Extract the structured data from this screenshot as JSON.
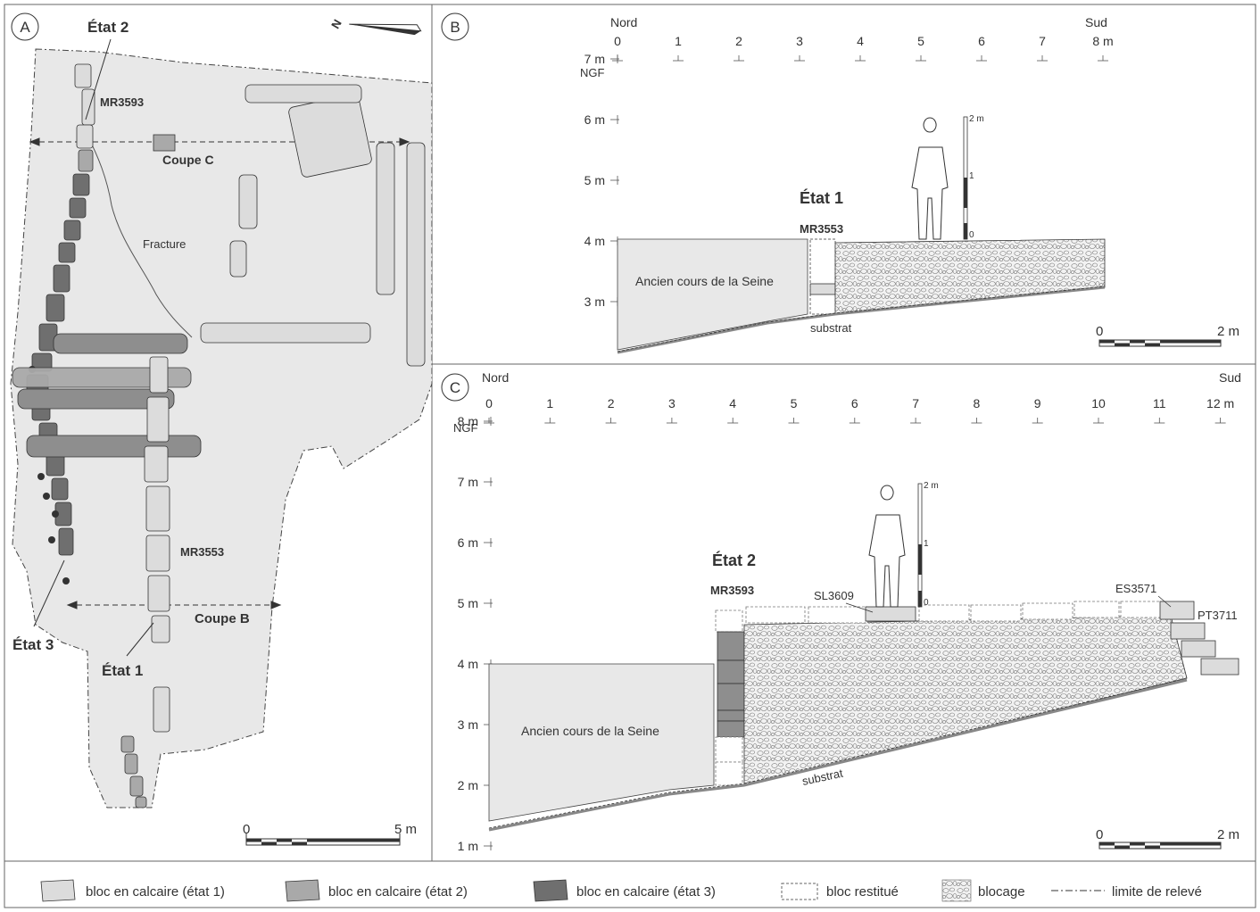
{
  "panelA": {
    "letter": "A",
    "etat2": "État 2",
    "etat3": "État 3",
    "etat1": "État 1",
    "mr3593": "MR3593",
    "mr3553": "MR3553",
    "coupeC": "Coupe C",
    "coupeB": "Coupe B",
    "fracture": "Fracture",
    "north": "N",
    "scale_zero": "0",
    "scale_end": "5 m"
  },
  "panelB": {
    "letter": "B",
    "nord": "Nord",
    "sud": "Sud",
    "top_ticks": [
      "0",
      "1",
      "2",
      "3",
      "4",
      "5",
      "6",
      "7",
      "8 m"
    ],
    "elev_labels": [
      "7 m",
      "6 m",
      "5 m",
      "4 m",
      "3 m"
    ],
    "ngf": "NGF",
    "etat": "État 1",
    "wall": "MR3553",
    "river": "Ancien cours de la Seine",
    "substrat": "substrat",
    "rod_top": "2 m",
    "rod_mid": "1",
    "rod_zero": "0",
    "scale_zero": "0",
    "scale_end": "2 m"
  },
  "panelC": {
    "letter": "C",
    "nord": "Nord",
    "sud": "Sud",
    "top_ticks": [
      "0",
      "1",
      "2",
      "3",
      "4",
      "5",
      "6",
      "7",
      "8",
      "9",
      "10",
      "11",
      "12 m"
    ],
    "elev_labels": [
      "8 m",
      "7 m",
      "6 m",
      "5 m",
      "4 m",
      "3 m",
      "2 m",
      "1 m"
    ],
    "ngf": "NGF",
    "etat": "État 2",
    "wall": "MR3593",
    "sl": "SL3609",
    "es": "ES3571",
    "pt": "PT3711",
    "river": "Ancien cours de la Seine",
    "substrat": "substrat",
    "rod_top": "2 m",
    "rod_mid": "1",
    "rod_zero": "0",
    "scale_zero": "0",
    "scale_end": "2 m"
  },
  "legend": {
    "items": [
      "bloc en calcaire (état 1)",
      "bloc en calcaire (état 2)",
      "bloc en calcaire (état 3)",
      "bloc restitué",
      "blocage",
      "limite de relevé"
    ]
  },
  "colors": {
    "excavation_fill": "#e8e8e8",
    "etat1": "#dcdcdc",
    "etat2": "#a9a9a9",
    "etat3": "#6f6f6f",
    "line": "#333333"
  }
}
